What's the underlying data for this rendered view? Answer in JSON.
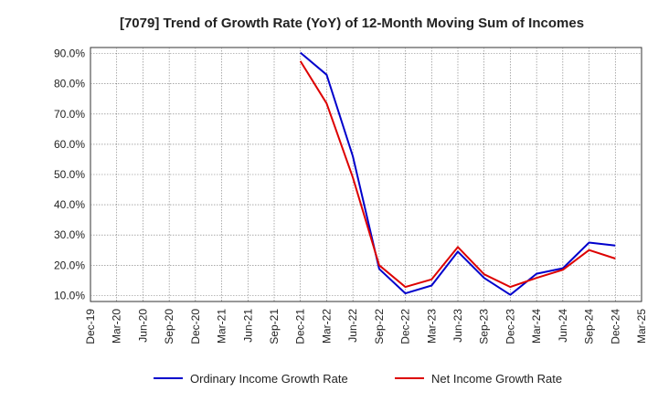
{
  "chart_data": {
    "type": "line",
    "title": "[7079]  Trend of Growth Rate (YoY) of 12-Month Moving Sum of Incomes",
    "xlabel": "",
    "ylabel": "",
    "x_ticks": [
      "Dec-19",
      "Mar-20",
      "Jun-20",
      "Sep-20",
      "Dec-20",
      "Mar-21",
      "Jun-21",
      "Sep-21",
      "Dec-21",
      "Mar-22",
      "Jun-22",
      "Sep-22",
      "Dec-22",
      "Mar-23",
      "Jun-23",
      "Sep-23",
      "Dec-23",
      "Mar-24",
      "Jun-24",
      "Sep-24",
      "Dec-24",
      "Mar-25"
    ],
    "y_ticks": [
      "90.0%",
      "80.0%",
      "70.0%",
      "60.0%",
      "50.0%",
      "40.0%",
      "30.0%",
      "20.0%",
      "10.0%"
    ],
    "y_tick_values": [
      90,
      80,
      70,
      60,
      50,
      40,
      30,
      20,
      10
    ],
    "ylim": [
      8,
      92
    ],
    "grid": true,
    "legend_position": "bottom",
    "series": [
      {
        "name": "Ordinary Income Growth Rate",
        "color": "#0000cc",
        "x": [
          "Dec-21",
          "Mar-22",
          "Jun-22",
          "Sep-22",
          "Dec-22",
          "Mar-23",
          "Jun-23",
          "Sep-23",
          "Dec-23",
          "Mar-24",
          "Jun-24",
          "Sep-24",
          "Dec-24"
        ],
        "values": [
          90.3,
          83.0,
          56.0,
          18.8,
          10.7,
          13.3,
          24.5,
          15.8,
          10.2,
          17.2,
          19.0,
          27.5,
          26.5
        ]
      },
      {
        "name": "Net Income Growth Rate",
        "color": "#dd0000",
        "x": [
          "Dec-21",
          "Mar-22",
          "Jun-22",
          "Sep-22",
          "Dec-22",
          "Mar-23",
          "Jun-23",
          "Sep-23",
          "Dec-23",
          "Mar-24",
          "Jun-24",
          "Sep-24",
          "Dec-24"
        ],
        "values": [
          87.5,
          73.5,
          49.0,
          20.0,
          12.8,
          15.3,
          26.0,
          17.0,
          12.8,
          15.8,
          18.5,
          25.0,
          22.2
        ]
      }
    ]
  }
}
